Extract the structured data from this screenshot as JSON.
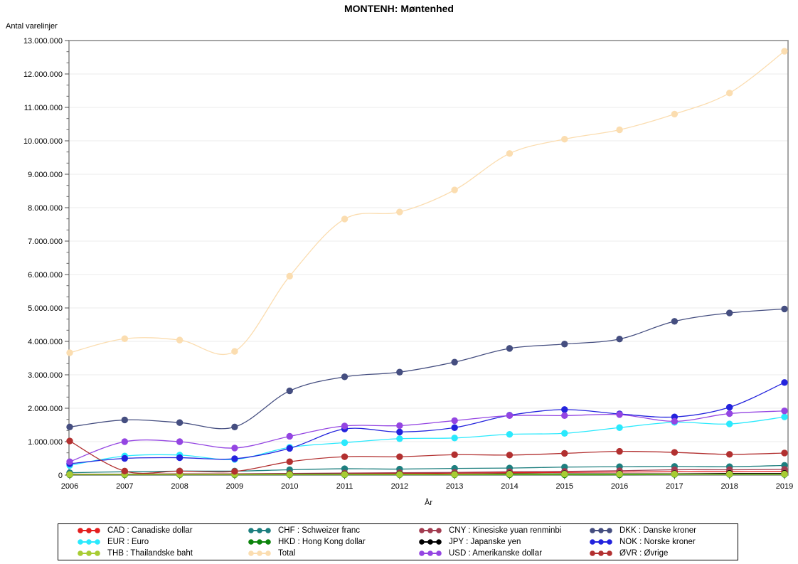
{
  "title": "MONTENH: Møntenhed",
  "chart_data": {
    "type": "line",
    "title": "MONTENH: Møntenhed",
    "xlabel": "År",
    "ylabel": "Antal varelinjer",
    "x": [
      2006,
      2007,
      2008,
      2009,
      2010,
      2011,
      2012,
      2013,
      2014,
      2015,
      2016,
      2017,
      2018,
      2019
    ],
    "ylim": [
      0,
      13000000
    ],
    "ytick_step": 1000000,
    "ytick_labels": [
      "0",
      "1.000.000",
      "2.000.000",
      "3.000.000",
      "4.000.000",
      "5.000.000",
      "6.000.000",
      "7.000.000",
      "8.000.000",
      "9.000.000",
      "10.000.000",
      "11.000.000",
      "12.000.000",
      "13.000.000"
    ],
    "grid": "horizontal",
    "legend_position": "bottom",
    "series": [
      {
        "id": "cad",
        "label": "CAD : Canadiske dollar",
        "color": "#e41e1e",
        "values": [
          30000,
          30000,
          30000,
          30000,
          40000,
          50000,
          50000,
          60000,
          70000,
          80000,
          90000,
          100000,
          100000,
          110000
        ]
      },
      {
        "id": "chf",
        "label": "CHF : Schweizer franc",
        "color": "#1d7f7f",
        "values": [
          70000,
          100000,
          120000,
          120000,
          160000,
          190000,
          180000,
          200000,
          210000,
          240000,
          250000,
          260000,
          250000,
          290000
        ]
      },
      {
        "id": "cny",
        "label": "CNY : Kinesiske yuan renminbi",
        "color": "#a23c50",
        "values": [
          20000,
          30000,
          40000,
          40000,
          50000,
          60000,
          70000,
          80000,
          100000,
          110000,
          130000,
          160000,
          160000,
          170000
        ]
      },
      {
        "id": "dkk",
        "label": "DKK : Danske kroner",
        "color": "#454e80",
        "values": [
          1440000,
          1650000,
          1570000,
          1440000,
          2520000,
          2940000,
          3080000,
          3380000,
          3790000,
          3920000,
          4070000,
          4600000,
          4850000,
          4970000
        ]
      },
      {
        "id": "eur",
        "label": "EUR : Euro",
        "color": "#2ae9fd",
        "values": [
          290000,
          570000,
          600000,
          470000,
          830000,
          970000,
          1090000,
          1110000,
          1220000,
          1250000,
          1420000,
          1580000,
          1530000,
          1740000
        ]
      },
      {
        "id": "hkd",
        "label": "HKD : Hong Kong dollar",
        "color": "#0c840c",
        "values": [
          10000,
          10000,
          10000,
          10000,
          10000,
          10000,
          10000,
          10000,
          10000,
          10000,
          10000,
          20000,
          20000,
          20000
        ]
      },
      {
        "id": "jpy",
        "label": "JPY : Japanske yen",
        "color": "#000000",
        "values": [
          20000,
          20000,
          20000,
          20000,
          30000,
          30000,
          30000,
          30000,
          40000,
          40000,
          40000,
          40000,
          50000,
          50000
        ]
      },
      {
        "id": "nok",
        "label": "NOK : Norske kroner",
        "color": "#2323dd",
        "values": [
          340000,
          500000,
          520000,
          490000,
          800000,
          1380000,
          1290000,
          1420000,
          1790000,
          1960000,
          1830000,
          1740000,
          2030000,
          2770000
        ]
      },
      {
        "id": "thb",
        "label": "THB : Thailandske baht",
        "color": "#a8cc33",
        "values": [
          20000,
          20000,
          20000,
          20000,
          20000,
          20000,
          20000,
          20000,
          30000,
          30000,
          30000,
          30000,
          30000,
          30000
        ]
      },
      {
        "id": "total",
        "label": "Total",
        "color": "#fbddb0",
        "values": [
          3660000,
          4080000,
          4040000,
          3700000,
          5950000,
          7660000,
          7870000,
          8530000,
          9620000,
          10050000,
          10330000,
          10800000,
          11430000,
          12680000
        ]
      },
      {
        "id": "usd",
        "label": "USD : Amerikanske dollar",
        "color": "#9445e2",
        "values": [
          400000,
          1000000,
          1000000,
          810000,
          1160000,
          1470000,
          1480000,
          1630000,
          1780000,
          1780000,
          1810000,
          1610000,
          1840000,
          1920000
        ]
      },
      {
        "id": "ovr",
        "label": "ØVR : Øvrige",
        "color": "#b23030",
        "values": [
          1020000,
          120000,
          120000,
          110000,
          400000,
          550000,
          550000,
          610000,
          600000,
          650000,
          710000,
          680000,
          620000,
          660000
        ]
      }
    ]
  },
  "legend": {
    "rows": [
      [
        "cad",
        "chf",
        "cny",
        "dkk"
      ],
      [
        "eur",
        "hkd",
        "jpy",
        "nok"
      ],
      [
        "thb",
        "total",
        "usd",
        "ovr"
      ]
    ]
  }
}
